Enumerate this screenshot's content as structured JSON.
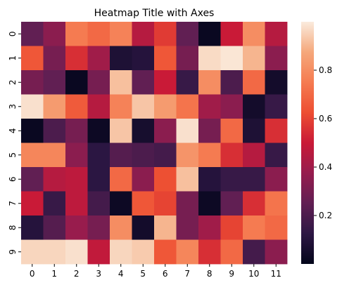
{
  "chart_data": {
    "type": "heatmap",
    "title": "Heatmap Title with Axes",
    "xlabel": "",
    "ylabel": "",
    "x_categories": [
      "0",
      "1",
      "2",
      "3",
      "4",
      "5",
      "6",
      "7",
      "8",
      "9",
      "10",
      "11"
    ],
    "y_categories": [
      "0",
      "1",
      "2",
      "3",
      "4",
      "5",
      "6",
      "7",
      "8",
      "9"
    ],
    "values": [
      [
        0.25,
        0.35,
        0.75,
        0.7,
        0.77,
        0.45,
        0.58,
        0.25,
        0.02,
        0.5,
        0.8,
        0.45
      ],
      [
        0.65,
        0.3,
        0.55,
        0.4,
        0.08,
        0.1,
        0.65,
        0.3,
        0.97,
        0.99,
        0.9,
        0.35
      ],
      [
        0.3,
        0.25,
        0.02,
        0.3,
        0.92,
        0.25,
        0.5,
        0.15,
        0.8,
        0.2,
        0.7,
        0.05
      ],
      [
        0.98,
        0.84,
        0.66,
        0.45,
        0.77,
        0.93,
        0.84,
        0.73,
        0.4,
        0.35,
        0.05,
        0.15
      ],
      [
        0.02,
        0.2,
        0.3,
        0.03,
        0.93,
        0.06,
        0.35,
        0.98,
        0.3,
        0.7,
        0.08,
        0.55
      ],
      [
        0.78,
        0.78,
        0.35,
        0.12,
        0.22,
        0.2,
        0.18,
        0.82,
        0.75,
        0.55,
        0.45,
        0.15
      ],
      [
        0.25,
        0.45,
        0.47,
        0.12,
        0.7,
        0.35,
        0.63,
        0.92,
        0.1,
        0.15,
        0.15,
        0.35
      ],
      [
        0.5,
        0.15,
        0.47,
        0.18,
        0.03,
        0.65,
        0.6,
        0.3,
        0.03,
        0.25,
        0.55,
        0.73
      ],
      [
        0.1,
        0.22,
        0.38,
        0.3,
        0.8,
        0.05,
        0.9,
        0.3,
        0.4,
        0.6,
        0.75,
        0.7
      ],
      [
        0.96,
        0.96,
        0.98,
        0.48,
        0.96,
        0.94,
        0.65,
        0.78,
        0.55,
        0.7,
        0.18,
        0.35
      ]
    ],
    "colorbar": {
      "range": [
        0.0,
        1.0
      ],
      "ticks": [
        0.2,
        0.4,
        0.6,
        0.8
      ],
      "tick_labels": [
        "0.2",
        "0.4",
        "0.6",
        "0.8"
      ]
    },
    "colormap": "rocket",
    "colormap_stops": [
      "#03051a",
      "#2d1744",
      "#611f53",
      "#961c4e",
      "#c91a37",
      "#ed4e32",
      "#f57b51",
      "#f5a87b",
      "#faebdd"
    ],
    "grid": false,
    "legend": "colorbar-right"
  }
}
